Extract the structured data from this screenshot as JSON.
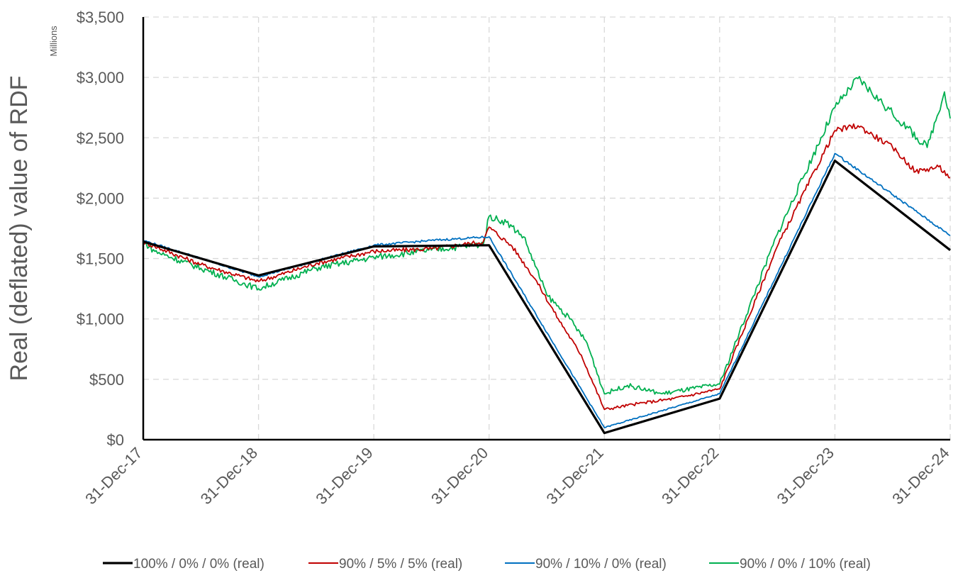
{
  "chart_data": {
    "type": "line",
    "title": "",
    "xlabel": "",
    "ylabel": "Real (deflated) value of RDF",
    "y_unit_label": "Millions",
    "ylim": [
      0,
      3500
    ],
    "y_ticks": [
      0,
      500,
      1000,
      1500,
      2000,
      2500,
      3000,
      3500
    ],
    "y_tick_labels": [
      "$0",
      "$500",
      "$1,000",
      "$1,500",
      "$2,000",
      "$2,500",
      "$3,000",
      "$3,500"
    ],
    "xlim": [
      0,
      7
    ],
    "x_ticks": [
      0,
      1,
      2,
      3,
      4,
      5,
      6,
      7
    ],
    "x_tick_labels": [
      "31-Dec-17",
      "31-Dec-18",
      "31-Dec-19",
      "31-Dec-20",
      "31-Dec-21",
      "31-Dec-22",
      "31-Dec-23",
      "31-Dec-24"
    ],
    "grid": true,
    "legend_position": "bottom",
    "series": [
      {
        "name": "100% / 0% / 0% (real)",
        "color": "#000000",
        "x": [
          0,
          1,
          2,
          3,
          4,
          5,
          6,
          7
        ],
        "y": [
          1640,
          1360,
          1600,
          1610,
          55,
          340,
          2310,
          1570
        ]
      },
      {
        "name": "90% / 5% / 5% (real)",
        "color": "#c00000",
        "x": [
          0,
          0.1,
          0.5,
          1,
          1.5,
          2,
          2.5,
          2.95,
          3,
          3.2,
          3.4,
          3.6,
          3.8,
          4,
          4.3,
          4.6,
          5,
          5.5,
          6,
          6.2,
          6.5,
          6.7,
          6.9,
          7
        ],
        "y": [
          1640,
          1600,
          1450,
          1310,
          1460,
          1560,
          1580,
          1640,
          1760,
          1600,
          1330,
          1000,
          700,
          250,
          300,
          340,
          420,
          1600,
          2560,
          2600,
          2420,
          2220,
          2260,
          2170
        ]
      },
      {
        "name": "90% / 10% / 0% (real)",
        "color": "#0070c0",
        "x": [
          0,
          1,
          2,
          2.5,
          3,
          4,
          5,
          6,
          7
        ],
        "y": [
          1650,
          1350,
          1610,
          1650,
          1680,
          100,
          380,
          2370,
          1690
        ]
      },
      {
        "name": "90% / 0% / 10% (real)",
        "color": "#00b050",
        "x": [
          0,
          0.1,
          0.5,
          1,
          1.5,
          2,
          2.5,
          2.95,
          3,
          3.15,
          3.3,
          3.5,
          3.7,
          3.85,
          4,
          4.2,
          4.5,
          5,
          5.5,
          6,
          6.2,
          6.5,
          6.8,
          6.95,
          7
        ],
        "y": [
          1640,
          1560,
          1420,
          1250,
          1420,
          1510,
          1570,
          1620,
          1850,
          1800,
          1680,
          1200,
          1000,
          800,
          380,
          450,
          380,
          460,
          1700,
          2750,
          2990,
          2700,
          2420,
          2880,
          2660
        ]
      }
    ]
  }
}
